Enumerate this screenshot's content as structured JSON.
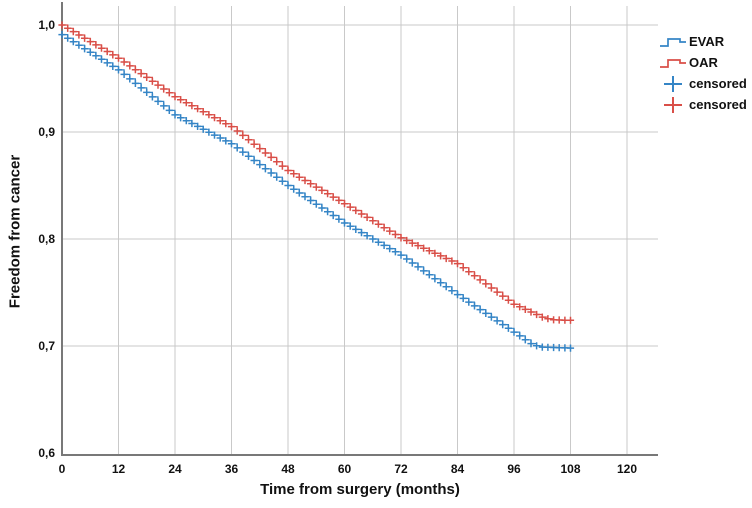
{
  "chart_data": {
    "type": "line",
    "subtype": "kaplan_meier_step_curve",
    "title": "",
    "xlabel": "Time from surgery (months)",
    "ylabel": "Freedom from cancer",
    "xlim": [
      0,
      126.6
    ],
    "ylim": [
      0.6,
      1.02
    ],
    "grid": true,
    "legend_position": "right",
    "xticks": [
      {
        "value": 0,
        "label": "0"
      },
      {
        "value": 12,
        "label": "12"
      },
      {
        "value": 24,
        "label": "24"
      },
      {
        "value": 36,
        "label": "36"
      },
      {
        "value": 48,
        "label": "48"
      },
      {
        "value": 60,
        "label": "60"
      },
      {
        "value": 72,
        "label": "72"
      },
      {
        "value": 84,
        "label": "84"
      },
      {
        "value": 96,
        "label": "96"
      },
      {
        "value": 108,
        "label": "108"
      },
      {
        "value": 120,
        "label": "120"
      }
    ],
    "yticks": [
      {
        "value": 1.0,
        "label": "1,0"
      },
      {
        "value": 0.9,
        "label": "0,9"
      },
      {
        "value": 0.8,
        "label": "0,8"
      },
      {
        "value": 0.7,
        "label": "0,7"
      },
      {
        "value": 0.6,
        "label": "0,6"
      }
    ],
    "series": [
      {
        "name": "EVAR",
        "color": "#3585C6",
        "style": "step_with_censor_plus_marks",
        "x": [
          0,
          12,
          24,
          36,
          48,
          60,
          72,
          84,
          96,
          100,
          102,
          108
        ],
        "y": [
          0.991,
          0.958,
          0.916,
          0.889,
          0.85,
          0.815,
          0.785,
          0.748,
          0.713,
          0.701,
          0.699,
          0.698
        ]
      },
      {
        "name": "OAR",
        "color": "#D94F48",
        "style": "step_with_censor_plus_marks",
        "x": [
          0,
          12,
          24,
          36,
          48,
          60,
          72,
          84,
          96,
          102,
          104,
          108
        ],
        "y": [
          1.0,
          0.969,
          0.933,
          0.905,
          0.864,
          0.833,
          0.801,
          0.777,
          0.739,
          0.727,
          0.7245,
          0.724
        ]
      }
    ],
    "legend": [
      {
        "label": "EVAR",
        "symbol": "step-line",
        "color": "#3585C6"
      },
      {
        "label": "OAR",
        "symbol": "step-line",
        "color": "#D94F48"
      },
      {
        "label": "censored",
        "symbol": "plus",
        "color": "#3585C6"
      },
      {
        "label": "censored",
        "symbol": "plus",
        "color": "#D94F48"
      }
    ],
    "colors": {
      "grid": "#C9C9C9",
      "axis": "#787878",
      "text": "#111111"
    }
  }
}
